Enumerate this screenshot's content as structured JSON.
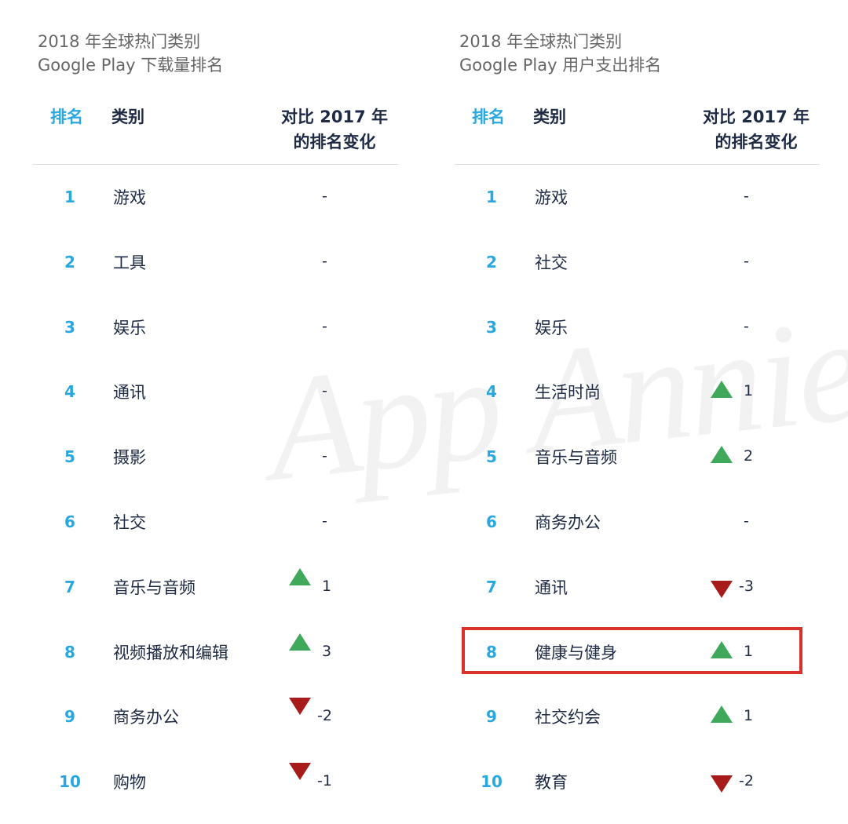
{
  "watermark": "App Annie",
  "colors": {
    "rank": "#29a8e0",
    "up": "#3fa85a",
    "down": "#a81b1b",
    "highlight": "#d8332a"
  },
  "chart_data": [
    {
      "type": "table",
      "title_line1": "2018 年全球热门类别",
      "title_line2": "Google Play 下载量排名",
      "headers": {
        "rank": "排名",
        "category": "类别",
        "change_line1": "对比 2017 年",
        "change_line2": "的排名变化"
      },
      "rows": [
        {
          "rank": "1",
          "category": "游戏",
          "change": "-",
          "direction": "none"
        },
        {
          "rank": "2",
          "category": "工具",
          "change": "-",
          "direction": "none"
        },
        {
          "rank": "3",
          "category": "娱乐",
          "change": "-",
          "direction": "none"
        },
        {
          "rank": "4",
          "category": "通讯",
          "change": "-",
          "direction": "none"
        },
        {
          "rank": "5",
          "category": "摄影",
          "change": "-",
          "direction": "none"
        },
        {
          "rank": "6",
          "category": "社交",
          "change": "-",
          "direction": "none"
        },
        {
          "rank": "7",
          "category": "音乐与音频",
          "change": "1",
          "direction": "up"
        },
        {
          "rank": "8",
          "category": "视频播放和编辑",
          "change": "3",
          "direction": "up"
        },
        {
          "rank": "9",
          "category": "商务办公",
          "change": "-2",
          "direction": "down"
        },
        {
          "rank": "10",
          "category": "购物",
          "change": "-1",
          "direction": "down"
        }
      ]
    },
    {
      "type": "table",
      "title_line1": "2018 年全球热门类别",
      "title_line2": "Google Play 用户支出排名",
      "headers": {
        "rank": "排名",
        "category": "类别",
        "change_line1": "对比 2017 年",
        "change_line2": "的排名变化"
      },
      "highlighted_rank": "8",
      "rows": [
        {
          "rank": "1",
          "category": "游戏",
          "change": "-",
          "direction": "none"
        },
        {
          "rank": "2",
          "category": "社交",
          "change": "-",
          "direction": "none"
        },
        {
          "rank": "3",
          "category": "娱乐",
          "change": "-",
          "direction": "none"
        },
        {
          "rank": "4",
          "category": "生活时尚",
          "change": "1",
          "direction": "up"
        },
        {
          "rank": "5",
          "category": "音乐与音频",
          "change": "2",
          "direction": "up"
        },
        {
          "rank": "6",
          "category": "商务办公",
          "change": "-",
          "direction": "none"
        },
        {
          "rank": "7",
          "category": "通讯",
          "change": "-3",
          "direction": "down"
        },
        {
          "rank": "8",
          "category": "健康与健身",
          "change": "1",
          "direction": "up"
        },
        {
          "rank": "9",
          "category": "社交约会",
          "change": "1",
          "direction": "up"
        },
        {
          "rank": "10",
          "category": "教育",
          "change": "-2",
          "direction": "down"
        }
      ]
    }
  ]
}
